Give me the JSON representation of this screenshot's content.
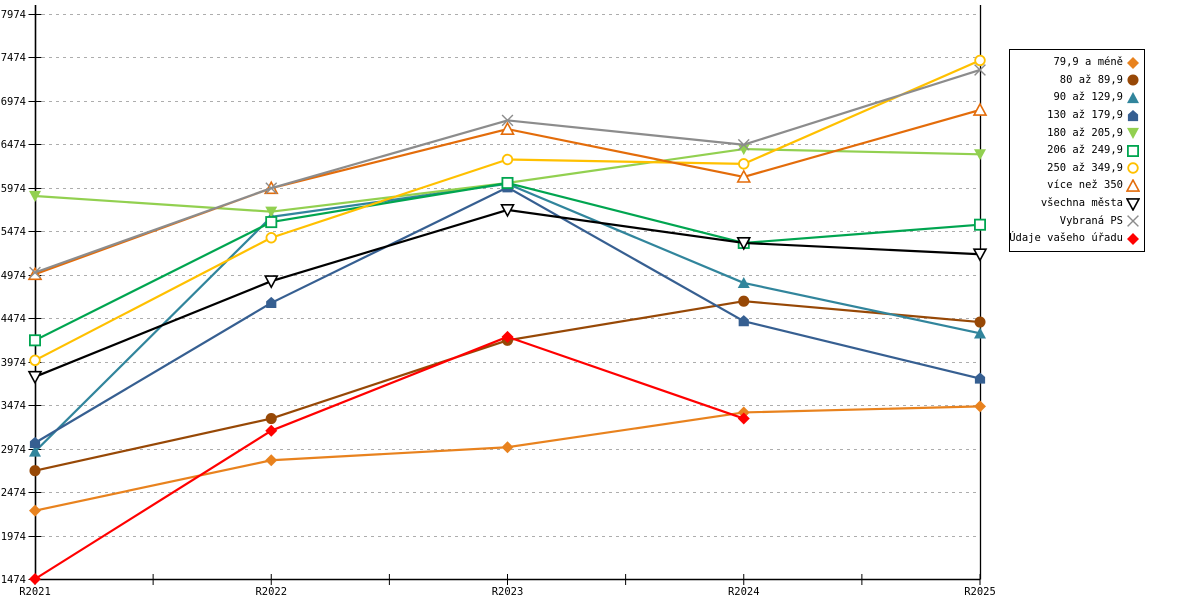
{
  "chart_data": {
    "type": "line",
    "title": "",
    "xlabel": "",
    "ylabel": "",
    "categories": [
      "R2021",
      "R2022",
      "R2023",
      "R2024",
      "R2025"
    ],
    "y_ticks": [
      1474,
      1974,
      2474,
      2974,
      3474,
      3974,
      4474,
      4974,
      5474,
      5974,
      6474,
      6974,
      7474,
      7974
    ],
    "ylim": [
      1474,
      7974
    ],
    "grid": "horizontal-dashed",
    "legend_position": "right",
    "series": [
      {
        "name": "79,9 a méně",
        "color": "#E8821E",
        "marker": "diamond",
        "values": [
          2260,
          2840,
          2990,
          3390,
          3460
        ]
      },
      {
        "name": "80 až 89,9",
        "color": "#974806",
        "marker": "circle",
        "values": [
          2720,
          3320,
          4220,
          4670,
          4430
        ]
      },
      {
        "name": "90 až 129,9",
        "color": "#31859C",
        "marker": "triangle-up",
        "values": [
          2940,
          5640,
          6020,
          4880,
          4300
        ]
      },
      {
        "name": "130 až 179,9",
        "color": "#365F91",
        "marker": "house",
        "values": [
          3040,
          4650,
          5980,
          4440,
          3780
        ]
      },
      {
        "name": "180 až 205,9",
        "color": "#92D050",
        "marker": "triangle-down",
        "values": [
          5880,
          5700,
          6030,
          6420,
          6360
        ]
      },
      {
        "name": "206 až 249,9",
        "color": "#00A550",
        "marker": "square-open",
        "values": [
          4220,
          5580,
          6030,
          5340,
          5550
        ]
      },
      {
        "name": "250 až 349,9",
        "color": "#FFC000",
        "marker": "circle-open",
        "values": [
          3990,
          5400,
          6300,
          6250,
          7440
        ]
      },
      {
        "name": "více než 350",
        "color": "#E36C0A",
        "marker": "triangle-up-open",
        "values": [
          4980,
          5970,
          6650,
          6100,
          6870
        ]
      },
      {
        "name": "všechna města",
        "color": "#000000",
        "marker": "triangle-down-open",
        "values": [
          3800,
          4900,
          5720,
          5340,
          5210
        ]
      },
      {
        "name": "Vybraná PS",
        "color": "#8C8C8C",
        "marker": "x",
        "values": [
          5000,
          5970,
          6750,
          6470,
          7330
        ]
      },
      {
        "name": "Údaje vašeho úřadu",
        "color": "#FF0000",
        "marker": "diamond",
        "values": [
          1474,
          3180,
          4260,
          3320,
          null
        ]
      }
    ]
  },
  "colors": {
    "grid": "#ADADAD",
    "axis": "#000000",
    "background": "#FFFFFF"
  }
}
